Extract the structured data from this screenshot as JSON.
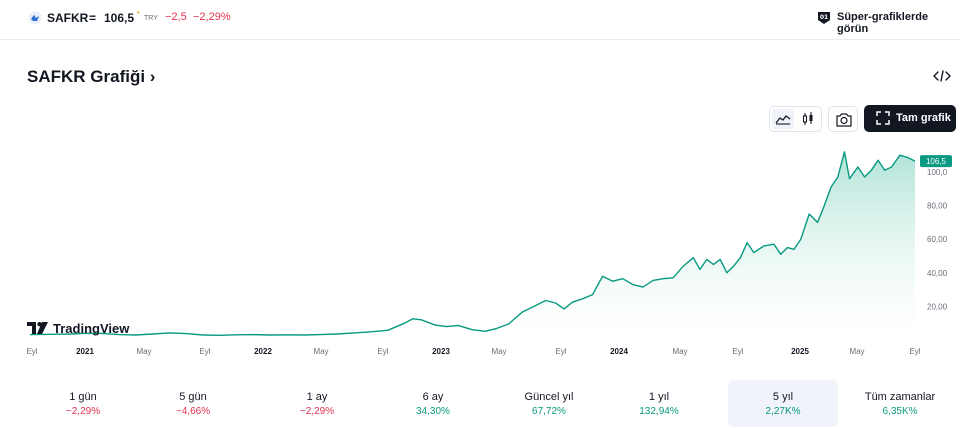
{
  "header": {
    "symbol": "SAFKR",
    "equals": "=",
    "price": "106,5",
    "price_dot": "•",
    "currency": "TRY",
    "change": "−2,5",
    "change_percent": "−2,29%",
    "super_chart_text": "Süper-grafiklerde görün"
  },
  "title": "SAFKR Grafiği",
  "title_chevron": "›",
  "toolbar": {
    "full_chart_label": "Tam grafik",
    "active_chart_type": "area"
  },
  "watermark": "TradingView",
  "chart_data": {
    "type": "area",
    "title": "",
    "x_ticks": [
      "Eyl",
      "2021",
      "May",
      "Eyl",
      "2022",
      "May",
      "Eyl",
      "2023",
      "May",
      "Eyl",
      "2024",
      "May",
      "Eyl",
      "2025",
      "May",
      "Eyl"
    ],
    "y_ticks": [
      "20,00",
      "40,00",
      "60,00",
      "80,00",
      "100,0"
    ],
    "ylim": [
      0,
      112
    ],
    "last_value_label": "106,5",
    "colors": {
      "line": "#089981",
      "area_top": "#a7e0d3",
      "area_bottom": "#ffffff",
      "last_label_bg": "#089981"
    },
    "series": [
      {
        "values": [
          [
            2020.67,
            3.2
          ],
          [
            2020.8,
            3.4
          ],
          [
            2020.92,
            3.6
          ],
          [
            2021.0,
            4.0
          ],
          [
            2021.1,
            3.9
          ],
          [
            2021.2,
            3.2
          ],
          [
            2021.3,
            3.0
          ],
          [
            2021.4,
            3.6
          ],
          [
            2021.5,
            4.2
          ],
          [
            2021.6,
            3.8
          ],
          [
            2021.7,
            3.0
          ],
          [
            2021.8,
            2.8
          ],
          [
            2021.9,
            3.1
          ],
          [
            2022.0,
            3.2
          ],
          [
            2022.1,
            3.0
          ],
          [
            2022.2,
            3.1
          ],
          [
            2022.3,
            3.0
          ],
          [
            2022.4,
            3.2
          ],
          [
            2022.5,
            3.6
          ],
          [
            2022.6,
            4.2
          ],
          [
            2022.7,
            4.9
          ],
          [
            2022.8,
            5.8
          ],
          [
            2022.9,
            10.0
          ],
          [
            2022.95,
            12.6
          ],
          [
            2023.0,
            12.0
          ],
          [
            2023.08,
            9.0
          ],
          [
            2023.15,
            8.0
          ],
          [
            2023.22,
            8.7
          ],
          [
            2023.3,
            6.2
          ],
          [
            2023.38,
            5.2
          ],
          [
            2023.45,
            6.9
          ],
          [
            2023.52,
            9.5
          ],
          [
            2023.6,
            16.5
          ],
          [
            2023.68,
            20.5
          ],
          [
            2023.74,
            23.5
          ],
          [
            2023.8,
            22.0
          ],
          [
            2023.85,
            18.5
          ],
          [
            2023.9,
            22.5
          ],
          [
            2023.96,
            24.5
          ],
          [
            2024.02,
            27.0
          ],
          [
            2024.08,
            38.0
          ],
          [
            2024.14,
            35.0
          ],
          [
            2024.2,
            36.5
          ],
          [
            2024.26,
            33.0
          ],
          [
            2024.32,
            31.5
          ],
          [
            2024.38,
            35.5
          ],
          [
            2024.44,
            36.5
          ],
          [
            2024.5,
            37.0
          ],
          [
            2024.56,
            44.0
          ],
          [
            2024.62,
            49.0
          ],
          [
            2024.66,
            42.0
          ],
          [
            2024.7,
            48.0
          ],
          [
            2024.74,
            45.0
          ],
          [
            2024.78,
            48.0
          ],
          [
            2024.82,
            40.0
          ],
          [
            2024.86,
            44.0
          ],
          [
            2024.9,
            49.0
          ],
          [
            2024.94,
            58.0
          ],
          [
            2024.98,
            52.0
          ],
          [
            2025.04,
            56.0
          ],
          [
            2025.1,
            57.0
          ],
          [
            2025.14,
            51.0
          ],
          [
            2025.18,
            55.0
          ],
          [
            2025.22,
            54.0
          ],
          [
            2025.26,
            60.0
          ],
          [
            2025.31,
            75.0
          ],
          [
            2025.36,
            70.0
          ],
          [
            2025.4,
            80.0
          ],
          [
            2025.44,
            91.0
          ],
          [
            2025.48,
            97.0
          ],
          [
            2025.52,
            112.0
          ],
          [
            2025.55,
            96.0
          ],
          [
            2025.6,
            103.0
          ],
          [
            2025.64,
            97.0
          ],
          [
            2025.68,
            101.0
          ],
          [
            2025.72,
            107.0
          ],
          [
            2025.76,
            101.0
          ],
          [
            2025.8,
            103.0
          ],
          [
            2025.85,
            110.0
          ],
          [
            2025.9,
            108.5
          ],
          [
            2025.94,
            106.5
          ]
        ]
      }
    ]
  },
  "periods": [
    {
      "label": "1 gün",
      "value": "−2,29%",
      "trend": "neg"
    },
    {
      "label": "5 gün",
      "value": "−4,66%",
      "trend": "neg"
    },
    {
      "label": "1 ay",
      "value": "−2,29%",
      "trend": "neg"
    },
    {
      "label": "6 ay",
      "value": "34,30%",
      "trend": "pos"
    },
    {
      "label": "Güncel yıl",
      "value": "67,72%",
      "trend": "pos"
    },
    {
      "label": "1 yıl",
      "value": "132,94%",
      "trend": "pos"
    },
    {
      "label": "5 yıl",
      "value": "2,27K%",
      "trend": "pos",
      "active": true
    },
    {
      "label": "Tüm zamanlar",
      "value": "6,35K%",
      "trend": "pos"
    }
  ]
}
